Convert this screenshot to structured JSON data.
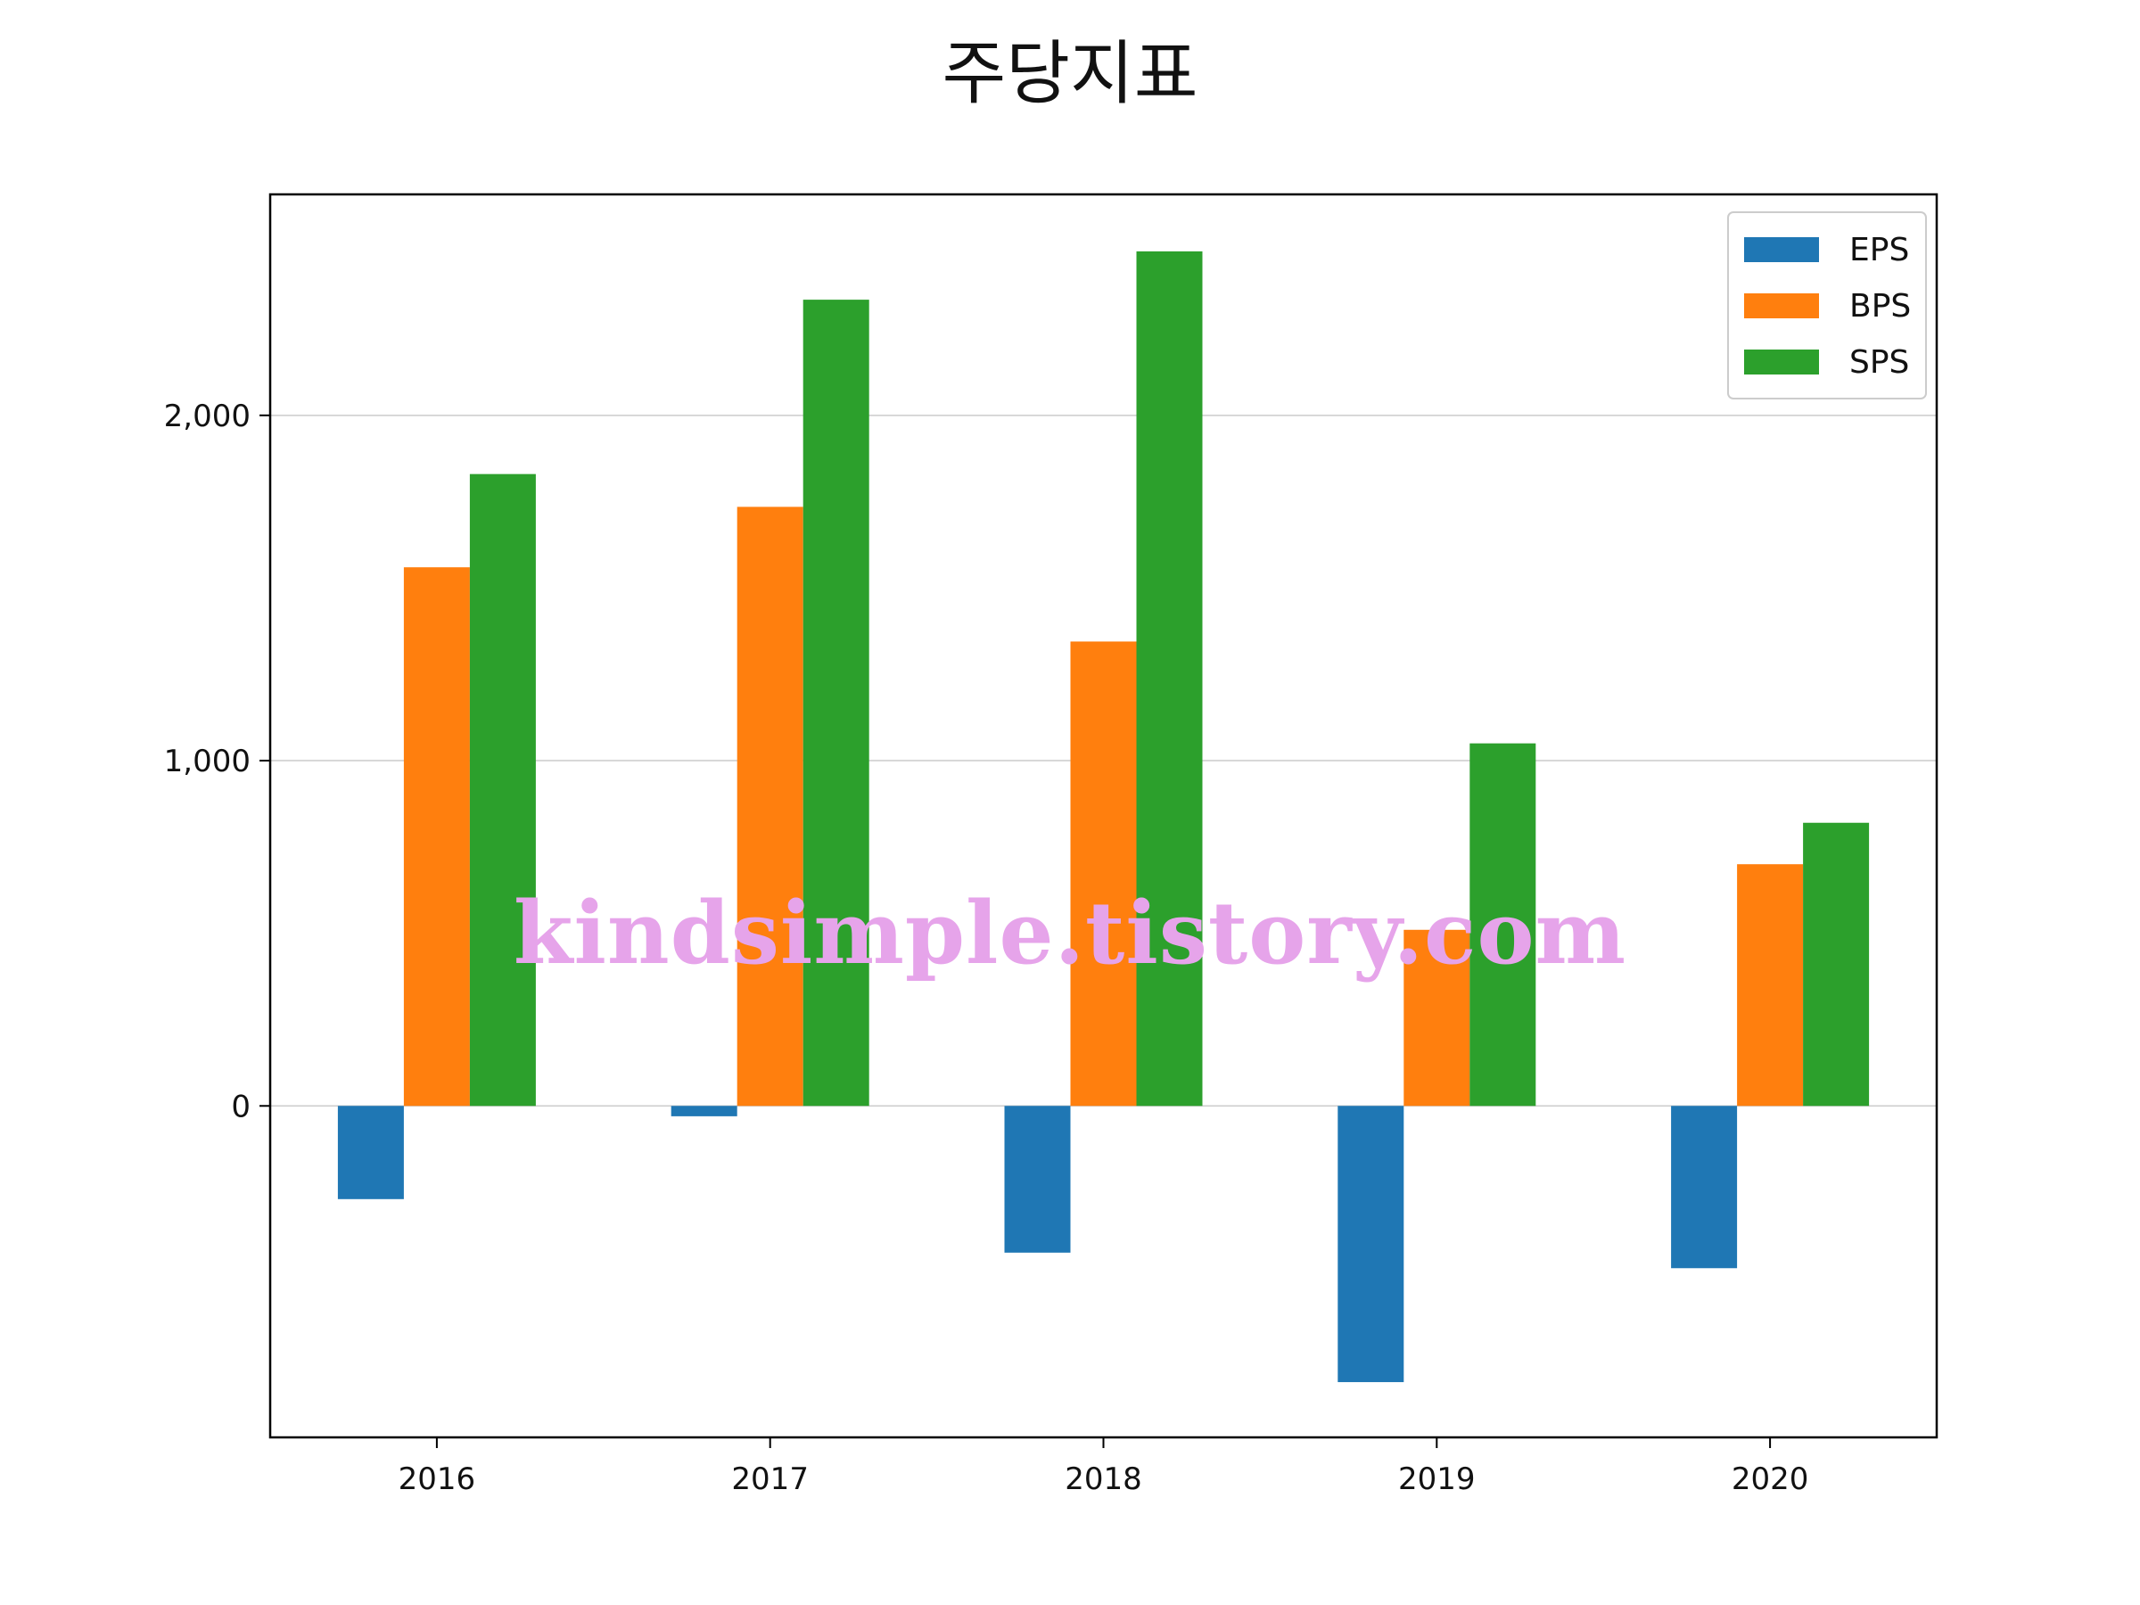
{
  "chart_data": {
    "type": "bar",
    "title": "주당지표",
    "xlabel": "",
    "ylabel": "",
    "categories": [
      "2016",
      "2017",
      "2018",
      "2019",
      "2020"
    ],
    "series": [
      {
        "name": "EPS",
        "color": "#1f77b4",
        "values": [
          -270,
          -30,
          -425,
          -800,
          -470
        ]
      },
      {
        "name": "BPS",
        "color": "#ff7f0e",
        "values": [
          1560,
          1735,
          1345,
          510,
          700
        ]
      },
      {
        "name": "SPS",
        "color": "#2ca02c",
        "values": [
          1830,
          2335,
          2475,
          1050,
          820
        ]
      }
    ],
    "ylim": [
      -960,
      2640
    ],
    "yticks": [
      0,
      1000,
      2000
    ],
    "ytick_labels": [
      "0",
      "1,000",
      "2,000"
    ],
    "grid": "y-only",
    "legend_position": "top-right"
  },
  "watermark": "kindsimple.tistory.com"
}
